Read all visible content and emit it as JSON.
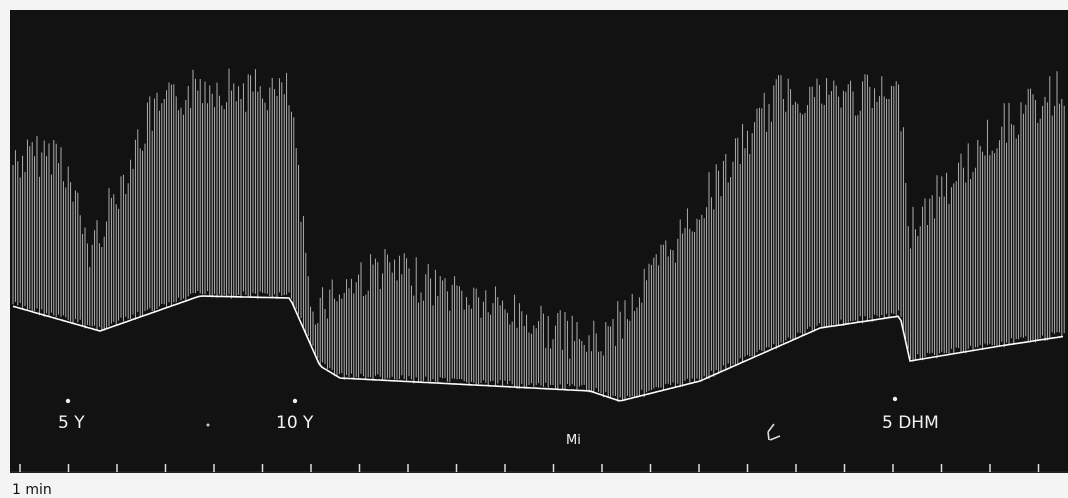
{
  "labels": [
    "5 Y",
    "10 Y",
    "Mi",
    "5 DHM"
  ],
  "time_scale": "1 min"
}
